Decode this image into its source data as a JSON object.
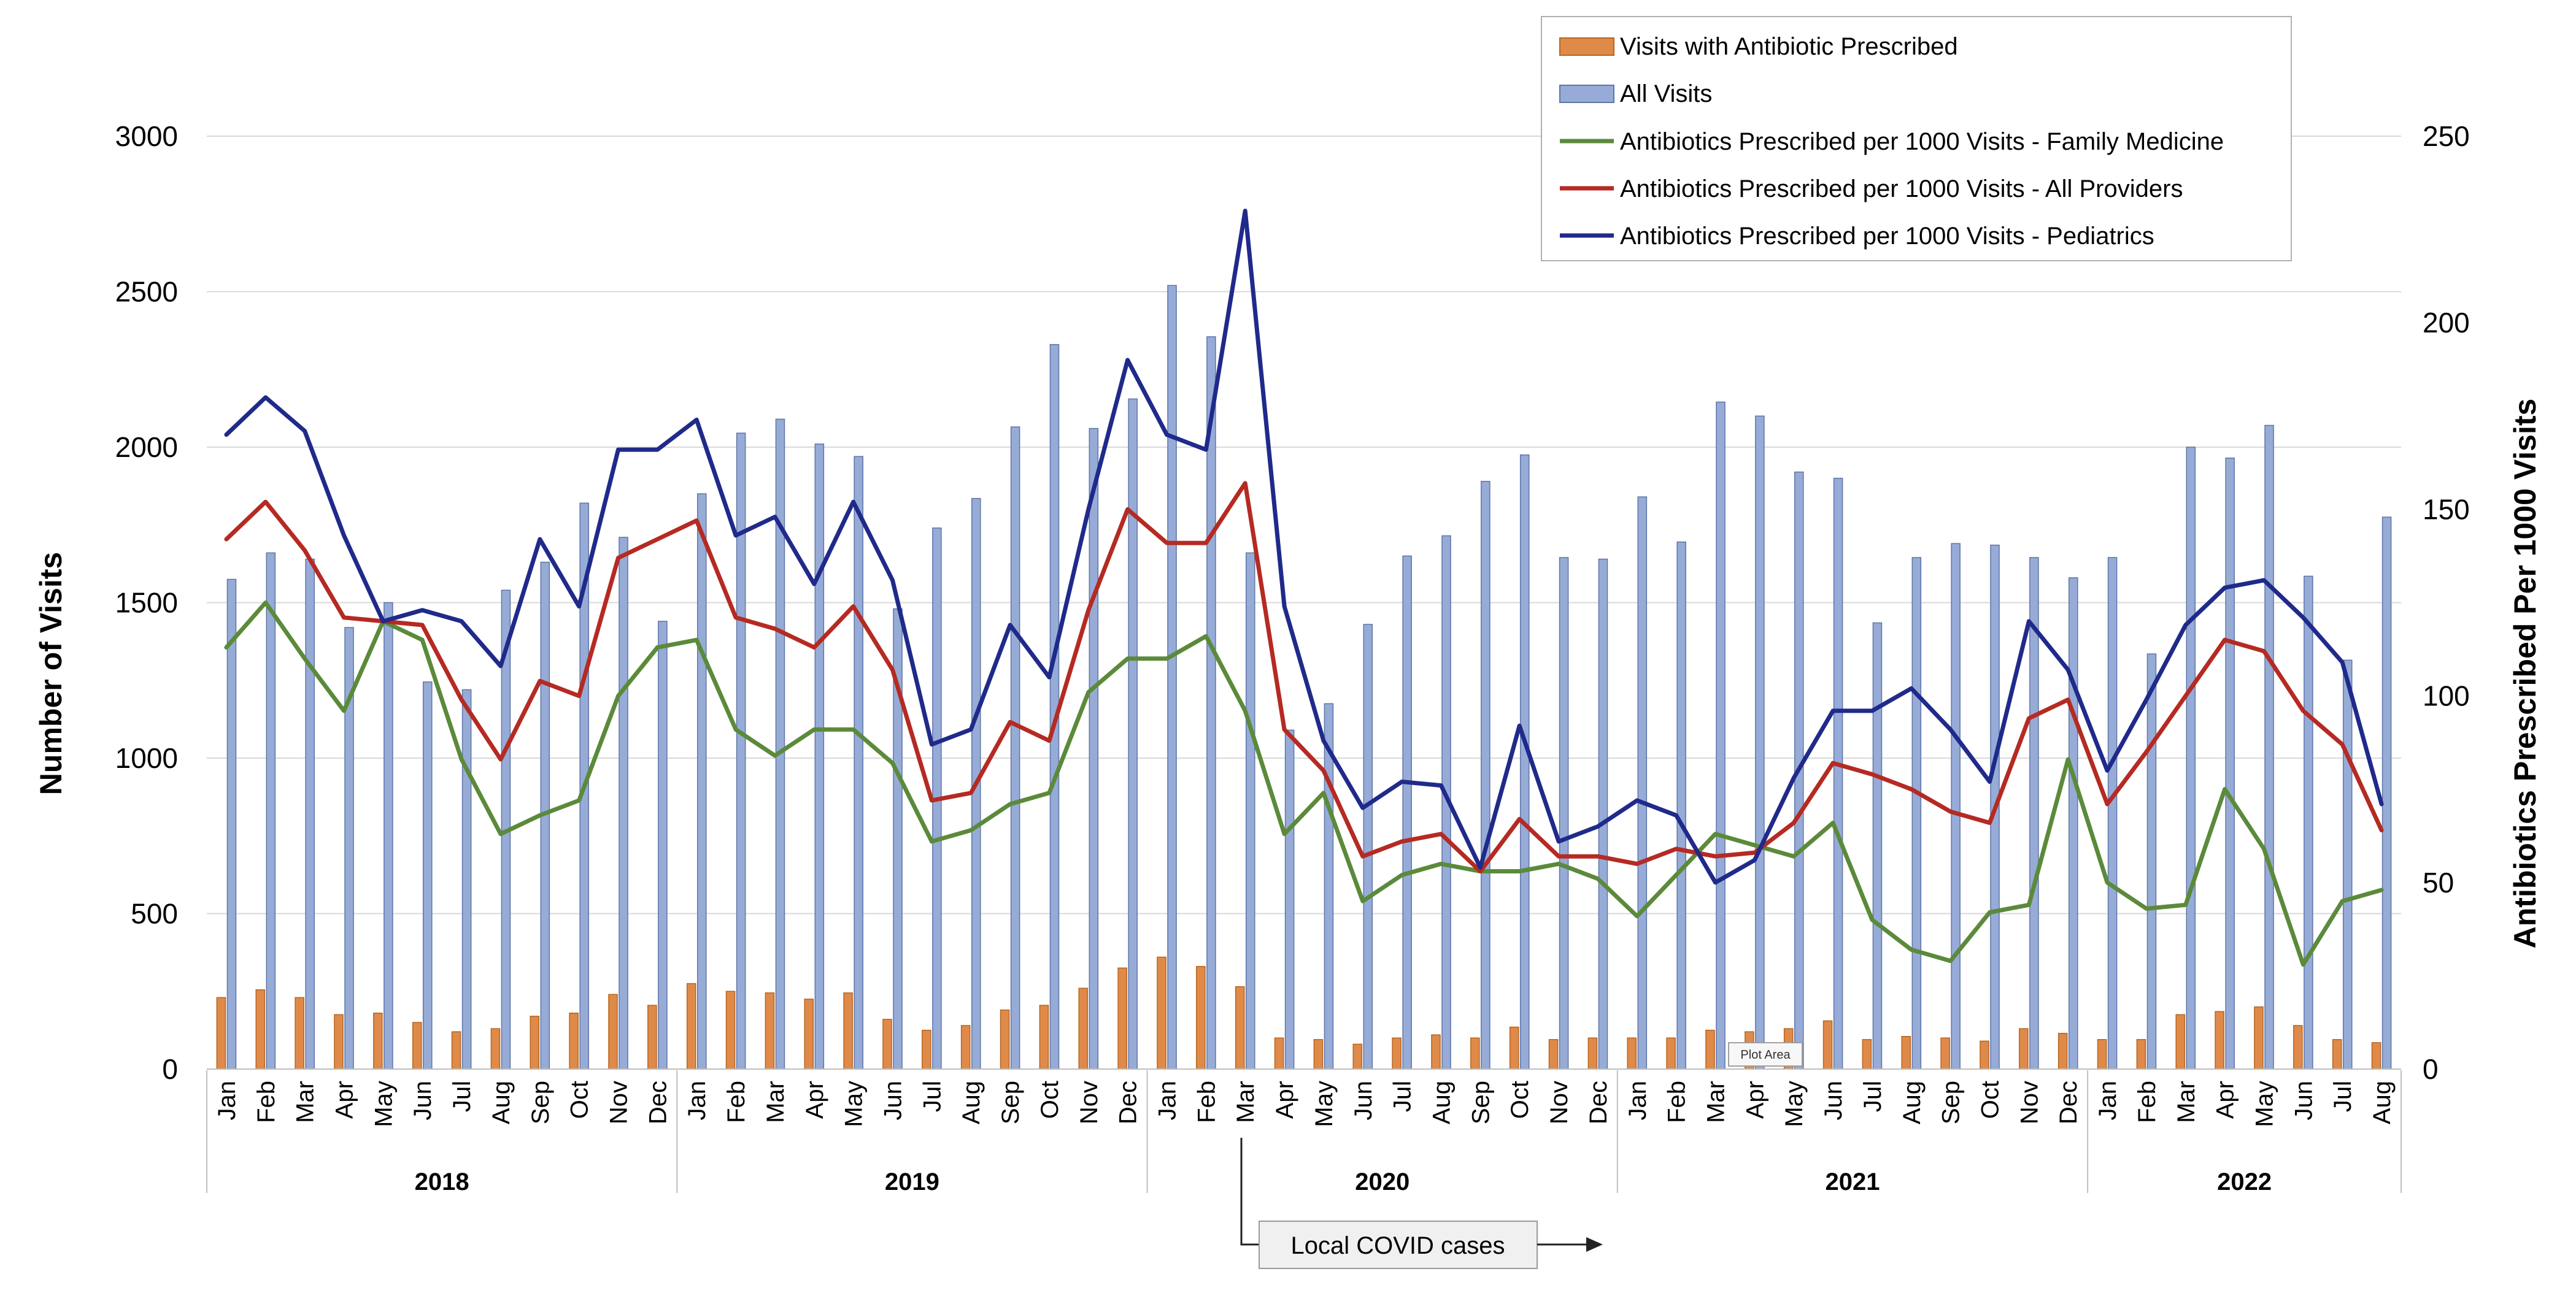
{
  "chart_data": {
    "type": "bar",
    "categories": [
      "Jan",
      "Feb",
      "Mar",
      "Apr",
      "May",
      "Jun",
      "Jul",
      "Aug",
      "Sep",
      "Oct",
      "Nov",
      "Dec",
      "Jan",
      "Feb",
      "Mar",
      "Apr",
      "May",
      "Jun",
      "Jul",
      "Aug",
      "Sep",
      "Oct",
      "Nov",
      "Dec",
      "Jan",
      "Feb",
      "Mar",
      "Apr",
      "May",
      "Jun",
      "Jul",
      "Aug",
      "Sep",
      "Oct",
      "Nov",
      "Dec",
      "Jan",
      "Feb",
      "Mar",
      "Apr",
      "May",
      "Jun",
      "Jul",
      "Aug",
      "Sep",
      "Oct",
      "Nov",
      "Dec",
      "Jan",
      "Feb",
      "Mar",
      "Apr",
      "May",
      "Jun",
      "Jul",
      "Aug"
    ],
    "year_groups": [
      {
        "label": "2018",
        "start": 0,
        "count": 12
      },
      {
        "label": "2019",
        "start": 12,
        "count": 12
      },
      {
        "label": "2020",
        "start": 24,
        "count": 12
      },
      {
        "label": "2021",
        "start": 36,
        "count": 12
      },
      {
        "label": "2022",
        "start": 48,
        "count": 8
      }
    ],
    "ylabel": "Number of  Visits",
    "y2label": "Antibiotics Prescribed Per 1000 Visits",
    "ylim": [
      0,
      3000
    ],
    "y2lim": [
      0,
      250
    ],
    "yticks": [
      "0",
      "500",
      "1000",
      "1500",
      "2000",
      "2500",
      "3000"
    ],
    "y2ticks": [
      "0",
      "50",
      "100",
      "150",
      "200",
      "250"
    ],
    "grid": true,
    "legend_position": "top-right",
    "series": [
      {
        "name": "Visits with Antibiotic Prescribed",
        "axis": "left",
        "kind": "bar",
        "color": "#e08a4a",
        "edge": "#b5651d",
        "values": [
          230,
          255,
          230,
          175,
          180,
          150,
          120,
          130,
          170,
          180,
          240,
          205,
          275,
          250,
          245,
          225,
          245,
          160,
          125,
          140,
          190,
          205,
          260,
          325,
          360,
          330,
          265,
          100,
          95,
          80,
          100,
          110,
          100,
          135,
          95,
          100,
          100,
          100,
          125,
          120,
          130,
          155,
          95,
          105,
          100,
          90,
          130,
          115,
          95,
          95,
          175,
          185,
          200,
          140,
          95,
          85
        ]
      },
      {
        "name": "All Visits",
        "axis": "left",
        "kind": "bar",
        "color": "#97abd7",
        "edge": "#5f75a8",
        "values": [
          1575,
          1660,
          1640,
          1420,
          1500,
          1245,
          1220,
          1540,
          1630,
          1820,
          1710,
          1440,
          1850,
          2045,
          2090,
          2010,
          1970,
          1480,
          1740,
          1835,
          2065,
          2330,
          2060,
          2155,
          2520,
          2355,
          1660,
          1090,
          1175,
          1430,
          1650,
          1715,
          1890,
          1975,
          1645,
          1640,
          1840,
          1695,
          2145,
          2100,
          1920,
          1900,
          1435,
          1645,
          1690,
          1685,
          1645,
          1580,
          1645,
          1335,
          2000,
          1965,
          2070,
          1585,
          1315,
          1775
        ]
      },
      {
        "name": "Antibiotics Prescribed per 1000 Visits - Family Medicine",
        "axis": "right",
        "kind": "line",
        "color": "#5b8a3a",
        "values": [
          113,
          125,
          110,
          96,
          120,
          115,
          83,
          63,
          68,
          72,
          100,
          113,
          115,
          91,
          84,
          91,
          91,
          82,
          61,
          64,
          71,
          74,
          101,
          110,
          110,
          116,
          96,
          63,
          74,
          45,
          52,
          55,
          53,
          53,
          55,
          51,
          41,
          52,
          63,
          60,
          57,
          66,
          40,
          32,
          29,
          42,
          44,
          83,
          50,
          43,
          44,
          75,
          59,
          28,
          45,
          48
        ]
      },
      {
        "name": "Antibiotics Prescribed per 1000 Visits - All Providers",
        "axis": "right",
        "kind": "line",
        "color": "#b52a22",
        "values": [
          142,
          152,
          139,
          121,
          120,
          119,
          99,
          83,
          104,
          100,
          137,
          142,
          147,
          121,
          118,
          113,
          124,
          107,
          72,
          74,
          93,
          88,
          123,
          150,
          141,
          141,
          157,
          91,
          80,
          57,
          61,
          63,
          53,
          67,
          57,
          57,
          55,
          59,
          57,
          58,
          66,
          82,
          79,
          75,
          69,
          66,
          94,
          99,
          71,
          85,
          100,
          115,
          112,
          96,
          87,
          64
        ]
      },
      {
        "name": "Antibiotics Prescribed per 1000 Visits - Pediatrics",
        "axis": "right",
        "kind": "line",
        "color": "#1f2a8a",
        "values": [
          170,
          180,
          171,
          143,
          120,
          123,
          120,
          108,
          142,
          124,
          166,
          166,
          174,
          143,
          148,
          130,
          152,
          131,
          87,
          91,
          119,
          105,
          150,
          190,
          170,
          166,
          230,
          124,
          88,
          70,
          77,
          76,
          54,
          92,
          61,
          65,
          72,
          68,
          50,
          56,
          78,
          96,
          96,
          102,
          91,
          77,
          120,
          107,
          80,
          99,
          119,
          129,
          131,
          121,
          109,
          71
        ]
      }
    ],
    "annotations": [
      {
        "text": "Local COVID cases",
        "anchor_index": 26
      },
      {
        "text": "Plot Area",
        "anchor_index": 39
      }
    ]
  }
}
